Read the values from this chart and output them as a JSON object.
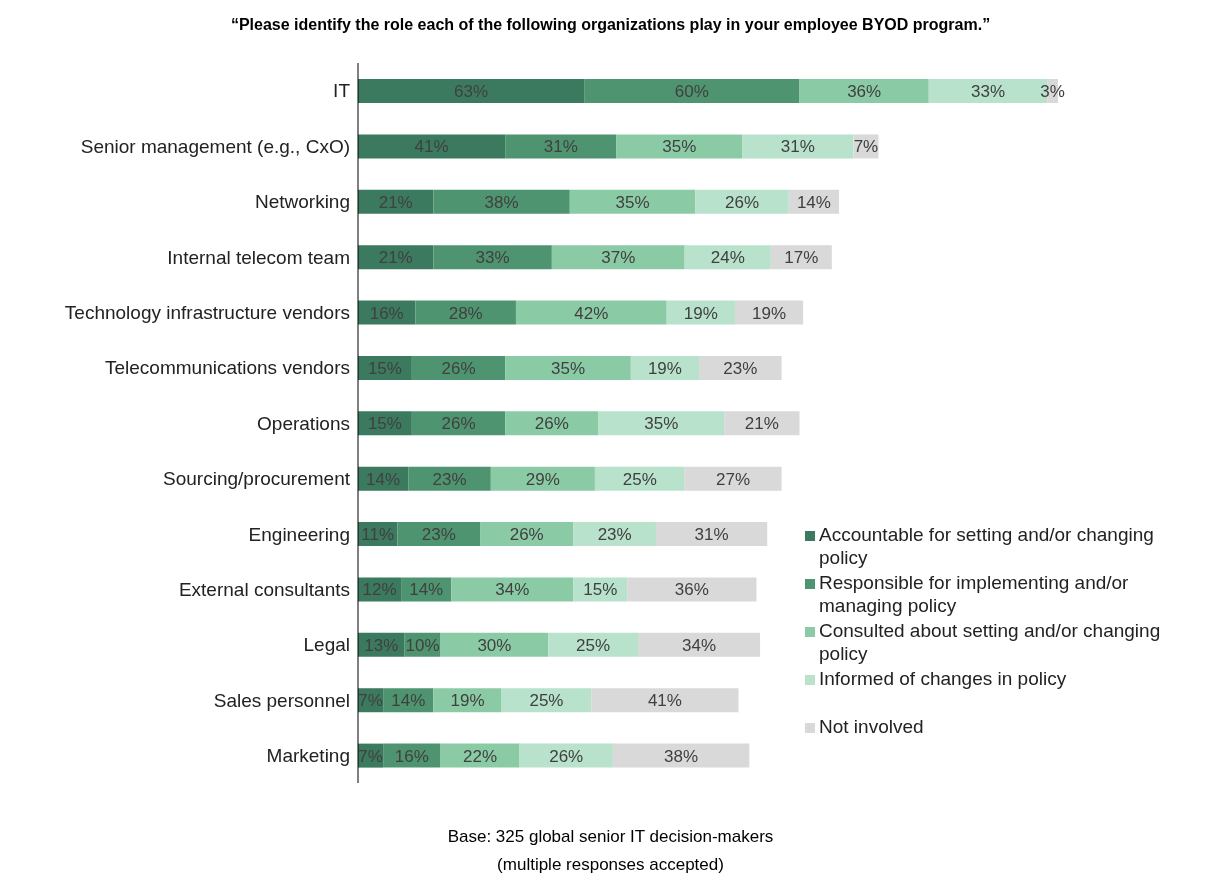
{
  "chart_data": {
    "type": "bar",
    "orientation": "horizontal",
    "stacked": true,
    "title": "“Please identify the role each of the following organizations play in your employee BYOD program.”",
    "categories": [
      "IT",
      "Senior management (e.g., CxO)",
      "Networking",
      "Internal telecom team",
      "Technology infrastructure vendors",
      "Telecommunications vendors",
      "Operations",
      "Sourcing/procurement",
      "Engineering",
      "External consultants",
      "Legal",
      "Sales personnel",
      "Marketing"
    ],
    "series": [
      {
        "name": "Accountable for setting and/or changing policy",
        "color": "#3b7a5f",
        "values": [
          63,
          41,
          21,
          21,
          16,
          15,
          15,
          14,
          11,
          12,
          13,
          7,
          7
        ],
        "value_labels": [
          "63%",
          "41%",
          "21%",
          "21%",
          "16%",
          "15%",
          "15%",
          "14%",
          "11%",
          "12%",
          "13%",
          "7%",
          "7%"
        ]
      },
      {
        "name": "Responsible for implementing and/or managing policy",
        "color": "#4f9470",
        "values": [
          60,
          31,
          38,
          33,
          28,
          26,
          26,
          23,
          23,
          14,
          10,
          14,
          16
        ],
        "value_labels": [
          "60%",
          "31%",
          "38%",
          "33%",
          "28%",
          "26%",
          "26%",
          "23%",
          "23%",
          "14%",
          "10%",
          "14%",
          "16%"
        ]
      },
      {
        "name": "Consulted about setting and/or changing policy",
        "color": "#8acba6",
        "values": [
          36,
          35,
          35,
          37,
          42,
          35,
          26,
          29,
          26,
          34,
          30,
          19,
          22
        ],
        "value_labels": [
          "36%",
          "35%",
          "35%",
          "37%",
          "42%",
          "35%",
          "26%",
          "29%",
          "26%",
          "34%",
          "30%",
          "19%",
          "22%"
        ]
      },
      {
        "name": "Informed of changes in policy",
        "color": "#b8e2cb",
        "values": [
          33,
          31,
          26,
          24,
          19,
          19,
          35,
          25,
          23,
          15,
          25,
          25,
          26
        ],
        "value_labels": [
          "33%",
          "31%",
          "26%",
          "24%",
          "19%",
          "19%",
          "35%",
          "25%",
          "23%",
          "15%",
          "25%",
          "25%",
          "26%"
        ]
      },
      {
        "name": "Not involved",
        "color": "#d9d9d9",
        "values": [
          3,
          7,
          14,
          17,
          19,
          23,
          21,
          27,
          31,
          36,
          34,
          41,
          38
        ],
        "value_labels": [
          "3%",
          "7%",
          "14%",
          "17%",
          "19%",
          "23%",
          "21%",
          "27%",
          "31%",
          "36%",
          "34%",
          "41%",
          "38%"
        ]
      }
    ],
    "legend": "right",
    "annotations": [
      "Base: 325 global senior IT decision-makers",
      "(multiple responses accepted)"
    ]
  }
}
